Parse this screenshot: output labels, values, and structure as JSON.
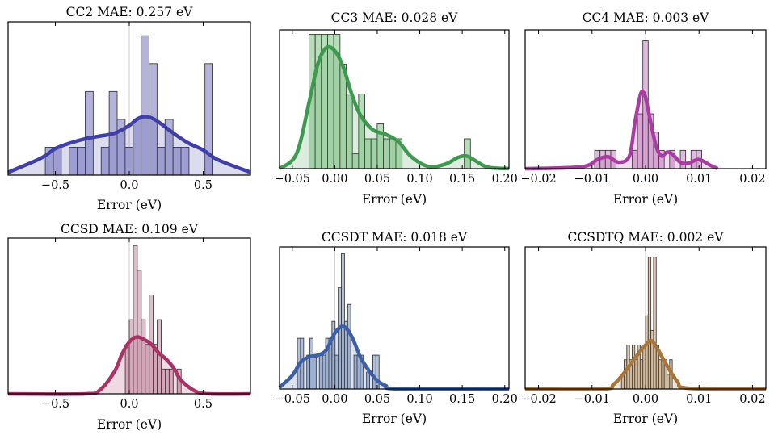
{
  "chart_data": [
    {
      "type": "bar",
      "title": "CC2 MAE: 0.257 eV",
      "xlabel": "Error (eV)",
      "xlim": [
        -0.82,
        0.82
      ],
      "xticks": [
        -0.5,
        0.0,
        0.5
      ],
      "xtick_labels": [
        "−0.5",
        "0.0",
        "0.5"
      ],
      "bin_width": 0.054,
      "bins": [
        {
          "x": -0.541,
          "count": 1
        },
        {
          "x": -0.487,
          "count": 1
        },
        {
          "x": -0.379,
          "count": 1
        },
        {
          "x": -0.325,
          "count": 1
        },
        {
          "x": -0.271,
          "count": 3
        },
        {
          "x": -0.163,
          "count": 1
        },
        {
          "x": -0.109,
          "count": 3
        },
        {
          "x": -0.055,
          "count": 2
        },
        {
          "x": -0.001,
          "count": 1
        },
        {
          "x": 0.053,
          "count": 2
        },
        {
          "x": 0.107,
          "count": 5
        },
        {
          "x": 0.161,
          "count": 4
        },
        {
          "x": 0.215,
          "count": 1
        },
        {
          "x": 0.269,
          "count": 2
        },
        {
          "x": 0.323,
          "count": 1
        },
        {
          "x": 0.377,
          "count": 1
        },
        {
          "x": 0.539,
          "count": 4
        }
      ],
      "kde": {
        "x": [
          -0.82,
          -0.6,
          -0.5,
          -0.4,
          -0.3,
          -0.2,
          -0.1,
          0.0,
          0.05,
          0.1,
          0.15,
          0.2,
          0.3,
          0.4,
          0.5,
          0.6,
          0.82
        ],
        "y": [
          0.1,
          0.6,
          0.95,
          1.15,
          1.3,
          1.4,
          1.5,
          1.78,
          2.0,
          2.1,
          2.05,
          1.9,
          1.5,
          1.15,
          0.9,
          0.55,
          0.1
        ]
      },
      "ylim": [
        0,
        5.5
      ],
      "color": "#3f3fa5",
      "fill": "#a6a6d6"
    },
    {
      "type": "bar",
      "title": "CC3 MAE: 0.028 eV",
      "xlabel": "Error (eV)",
      "xlim": [
        -0.065,
        0.205
      ],
      "xticks": [
        -0.05,
        0.0,
        0.05,
        0.1,
        0.15,
        0.2
      ],
      "xtick_labels": [
        "−0.05",
        "0.00",
        "0.05",
        "0.10",
        "0.15",
        "0.20"
      ],
      "bin_width": 0.0073,
      "bins": [
        {
          "x": -0.0267,
          "count": 9
        },
        {
          "x": -0.0194,
          "count": 9
        },
        {
          "x": -0.0121,
          "count": 9
        },
        {
          "x": -0.0048,
          "count": 9
        },
        {
          "x": 0.0025,
          "count": 9
        },
        {
          "x": 0.0098,
          "count": 7
        },
        {
          "x": 0.0171,
          "count": 5
        },
        {
          "x": 0.0244,
          "count": 1
        },
        {
          "x": 0.0317,
          "count": 5
        },
        {
          "x": 0.039,
          "count": 2
        },
        {
          "x": 0.0463,
          "count": 2
        },
        {
          "x": 0.0536,
          "count": 3
        },
        {
          "x": 0.0609,
          "count": 2
        },
        {
          "x": 0.0682,
          "count": 2
        },
        {
          "x": 0.0755,
          "count": 2
        },
        {
          "x": 0.156,
          "count": 2
        }
      ],
      "kde": {
        "x": [
          -0.065,
          -0.045,
          -0.03,
          -0.02,
          -0.01,
          0.0,
          0.01,
          0.02,
          0.03,
          0.045,
          0.06,
          0.075,
          0.09,
          0.11,
          0.13,
          0.145,
          0.155,
          0.165,
          0.18,
          0.205
        ],
        "y": [
          0.0,
          1.0,
          4.5,
          7.0,
          8.1,
          7.9,
          6.8,
          5.0,
          3.6,
          2.6,
          2.3,
          1.8,
          0.8,
          0.15,
          0.3,
          0.75,
          0.85,
          0.55,
          0.1,
          0.0
        ]
      },
      "ylim": [
        0,
        9.3
      ],
      "color": "#3e9a4e",
      "fill": "#a9d8ac"
    },
    {
      "type": "bar",
      "title": "CC4 MAE: 0.003 eV",
      "xlabel": "Error (eV)",
      "xlim": [
        -0.0225,
        0.0225
      ],
      "xticks": [
        -0.02,
        -0.01,
        0.0,
        0.01,
        0.02
      ],
      "xtick_labels": [
        "−0.02",
        "−0.01",
        "0.00",
        "0.01",
        "0.02"
      ],
      "bin_width": 0.001,
      "bins": [
        {
          "x": -0.009,
          "count": 1
        },
        {
          "x": -0.008,
          "count": 1
        },
        {
          "x": -0.007,
          "count": 1
        },
        {
          "x": -0.006,
          "count": 1
        },
        {
          "x": -0.002,
          "count": 1
        },
        {
          "x": -0.001,
          "count": 3
        },
        {
          "x": 0.0,
          "count": 7
        },
        {
          "x": 0.001,
          "count": 3
        },
        {
          "x": 0.002,
          "count": 2
        },
        {
          "x": 0.003,
          "count": 1
        },
        {
          "x": 0.005,
          "count": 1
        },
        {
          "x": 0.007,
          "count": 1
        },
        {
          "x": 0.009,
          "count": 1
        },
        {
          "x": 0.01,
          "count": 1
        }
      ],
      "kde": {
        "x": [
          -0.0225,
          -0.012,
          -0.009,
          -0.007,
          -0.005,
          -0.003,
          -0.002,
          -0.001,
          -0.0005,
          0.0,
          0.001,
          0.002,
          0.003,
          0.004,
          0.005,
          0.0065,
          0.008,
          0.01,
          0.012,
          0.0135
        ],
        "y": [
          0.0,
          0.1,
          0.5,
          0.65,
          0.35,
          0.7,
          2.5,
          4.0,
          4.2,
          3.9,
          2.5,
          1.2,
          0.7,
          0.9,
          0.8,
          0.35,
          0.3,
          0.5,
          0.2,
          0.0
        ]
      },
      "ylim": [
        0,
        7.6
      ],
      "color": "#a93ca0",
      "fill": "#dcaed9"
    },
    {
      "type": "bar",
      "title": "CCSD MAE: 0.109 eV",
      "xlabel": "Error (eV)",
      "xlim": [
        -0.82,
        0.82
      ],
      "xticks": [
        -0.5,
        0.0,
        0.5
      ],
      "xtick_labels": [
        "−0.5",
        "0.0",
        "0.5"
      ],
      "bin_width": 0.027,
      "bins": [
        {
          "x": -0.0135,
          "count": 2
        },
        {
          "x": 0.0135,
          "count": 3
        },
        {
          "x": 0.0405,
          "count": 6
        },
        {
          "x": 0.0675,
          "count": 5
        },
        {
          "x": 0.0945,
          "count": 3
        },
        {
          "x": 0.1215,
          "count": 2
        },
        {
          "x": 0.1485,
          "count": 4
        },
        {
          "x": 0.1755,
          "count": 2
        },
        {
          "x": 0.2025,
          "count": 3
        },
        {
          "x": 0.2295,
          "count": 1
        },
        {
          "x": 0.2565,
          "count": 1
        },
        {
          "x": 0.2835,
          "count": 1
        },
        {
          "x": 0.3375,
          "count": 1
        }
      ],
      "kde": {
        "x": [
          -0.82,
          -0.3,
          -0.2,
          -0.1,
          -0.05,
          0.0,
          0.05,
          0.1,
          0.15,
          0.2,
          0.25,
          0.3,
          0.35,
          0.45,
          0.55,
          0.82
        ],
        "y": [
          0.0,
          0.0,
          0.15,
          0.9,
          1.6,
          2.1,
          2.3,
          2.2,
          2.0,
          1.65,
          1.4,
          1.05,
          0.55,
          0.1,
          0.0,
          0.0
        ]
      },
      "ylim": [
        0,
        6.3
      ],
      "color": "#a83366",
      "fill": "#dbb1c1"
    },
    {
      "type": "bar",
      "title": "CCSDT MAE: 0.018 eV",
      "xlabel": "Error (eV)",
      "xlim": [
        -0.065,
        0.205
      ],
      "xticks": [
        -0.05,
        0.0,
        0.05,
        0.1,
        0.15,
        0.2
      ],
      "xtick_labels": [
        "−0.05",
        "0.00",
        "0.05",
        "0.10",
        "0.15",
        "0.20"
      ],
      "bin_width": 0.0037,
      "bins": [
        {
          "x": -0.0422,
          "count": 3
        },
        {
          "x": -0.0385,
          "count": 3
        },
        {
          "x": -0.0311,
          "count": 2
        },
        {
          "x": -0.0274,
          "count": 3
        },
        {
          "x": -0.0237,
          "count": 2
        },
        {
          "x": -0.0163,
          "count": 2
        },
        {
          "x": -0.0126,
          "count": 2
        },
        {
          "x": -0.0089,
          "count": 3
        },
        {
          "x": -0.0052,
          "count": 3
        },
        {
          "x": -0.0015,
          "count": 4
        },
        {
          "x": 0.0022,
          "count": 2
        },
        {
          "x": 0.0059,
          "count": 6
        },
        {
          "x": 0.0096,
          "count": 8
        },
        {
          "x": 0.0133,
          "count": 4
        },
        {
          "x": 0.017,
          "count": 5
        },
        {
          "x": 0.0244,
          "count": 2
        },
        {
          "x": 0.0281,
          "count": 2
        },
        {
          "x": 0.0318,
          "count": 2
        },
        {
          "x": 0.0392,
          "count": 1
        },
        {
          "x": 0.0466,
          "count": 2
        },
        {
          "x": 0.0503,
          "count": 2
        }
      ],
      "kde": {
        "x": [
          -0.065,
          -0.05,
          -0.04,
          -0.03,
          -0.02,
          -0.01,
          0.0,
          0.01,
          0.02,
          0.03,
          0.04,
          0.05,
          0.06,
          0.075,
          0.205
        ],
        "y": [
          0.1,
          0.8,
          1.6,
          1.9,
          2.0,
          2.3,
          3.3,
          3.7,
          3.1,
          1.9,
          1.1,
          0.5,
          0.2,
          0.0,
          0.0
        ]
      },
      "ylim": [
        0,
        8.4
      ],
      "color": "#3d5fa5",
      "fill": "#a6b7d6"
    },
    {
      "type": "bar",
      "title": "CCSDTQ MAE: 0.002 eV",
      "xlabel": "Error (eV)",
      "xlim": [
        -0.0225,
        0.0225
      ],
      "xticks": [
        -0.02,
        -0.01,
        0.0,
        0.01,
        0.02
      ],
      "xtick_labels": [
        "−0.02",
        "−0.01",
        "0.00",
        "0.01",
        "0.02"
      ],
      "bin_width": 0.0005,
      "bins": [
        {
          "x": -0.00425,
          "count": 1
        },
        {
          "x": -0.00375,
          "count": 2
        },
        {
          "x": -0.00325,
          "count": 3
        },
        {
          "x": -0.00275,
          "count": 2
        },
        {
          "x": -0.00225,
          "count": 3
        },
        {
          "x": -0.00175,
          "count": 2
        },
        {
          "x": -0.00125,
          "count": 3
        },
        {
          "x": -0.00075,
          "count": 2
        },
        {
          "x": -0.00025,
          "count": 3
        },
        {
          "x": 0.00025,
          "count": 5
        },
        {
          "x": 0.00075,
          "count": 9
        },
        {
          "x": 0.00125,
          "count": 4
        },
        {
          "x": 0.00175,
          "count": 9
        },
        {
          "x": 0.00225,
          "count": 3
        },
        {
          "x": 0.00275,
          "count": 2
        },
        {
          "x": 0.00325,
          "count": 2
        },
        {
          "x": 0.00375,
          "count": 2
        },
        {
          "x": 0.00425,
          "count": 1
        },
        {
          "x": 0.00475,
          "count": 2
        }
      ],
      "kde": {
        "x": [
          -0.0225,
          -0.008,
          -0.006,
          -0.004,
          -0.002,
          0.0,
          0.001,
          0.002,
          0.004,
          0.006,
          0.008,
          0.0225
        ],
        "y": [
          0.0,
          0.0,
          0.3,
          1.1,
          2.1,
          3.0,
          3.3,
          2.9,
          1.6,
          0.5,
          0.05,
          0.0
        ]
      },
      "ylim": [
        0,
        9.7
      ],
      "color": "#a8753a",
      "fill": "#d8c1a6"
    }
  ]
}
